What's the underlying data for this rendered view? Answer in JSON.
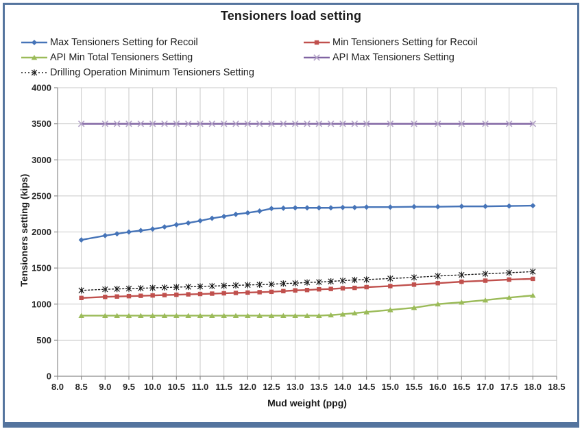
{
  "chart": {
    "title": "Tensioners load setting",
    "x_axis_label": "Mud weight (ppg)",
    "y_axis_label": "Tensioners setting (kips)"
  },
  "colors": {
    "frame_border": "#54749e",
    "gridline": "#c9c9c9",
    "axis_line": "#8c8c8c",
    "text": "#262626"
  },
  "chart_data": {
    "type": "line",
    "title": "Tensioners load setting",
    "xlabel": "Mud weight (ppg)",
    "ylabel": "Tensioners setting (kips)",
    "xlim": [
      8.0,
      18.5
    ],
    "ylim": [
      0,
      4000
    ],
    "grid": true,
    "legend_position": "top-left, two columns",
    "x_ticks": [
      "8.0",
      "8.5",
      "9.0",
      "9.5",
      "10.0",
      "10.5",
      "11.0",
      "11.5",
      "12.0",
      "12.5",
      "13.0",
      "13.5",
      "14.0",
      "14.5",
      "15.0",
      "15.5",
      "16.0",
      "16.5",
      "17.0",
      "17.5",
      "18.0",
      "18.5"
    ],
    "y_ticks": [
      "0",
      "500",
      "1000",
      "1500",
      "2000",
      "2500",
      "3000",
      "3500",
      "4000"
    ],
    "x": [
      8.5,
      9.0,
      9.25,
      9.5,
      9.75,
      10.0,
      10.25,
      10.5,
      10.75,
      11.0,
      11.25,
      11.5,
      11.75,
      12.0,
      12.25,
      12.5,
      12.75,
      13.0,
      13.25,
      13.5,
      13.75,
      14.0,
      14.25,
      14.5,
      15.0,
      15.5,
      16.0,
      16.5,
      17.0,
      17.5,
      18.0
    ],
    "series": [
      {
        "name": "Max Tensioners Setting for Recoil",
        "color": "#4674b8",
        "marker": "diamond",
        "marker_color": "#4674b8",
        "line_style": "solid",
        "values": [
          1890,
          1950,
          1975,
          2000,
          2020,
          2040,
          2070,
          2100,
          2125,
          2155,
          2190,
          2215,
          2245,
          2265,
          2290,
          2325,
          2330,
          2335,
          2335,
          2335,
          2335,
          2340,
          2340,
          2345,
          2345,
          2350,
          2350,
          2355,
          2355,
          2360,
          2365
        ]
      },
      {
        "name": "Min Tensioners Setting for Recoil",
        "color": "#c0504d",
        "marker": "square",
        "marker_color": "#c0504d",
        "line_style": "solid",
        "values": [
          1085,
          1100,
          1105,
          1110,
          1115,
          1120,
          1125,
          1130,
          1135,
          1140,
          1145,
          1150,
          1155,
          1160,
          1165,
          1170,
          1180,
          1190,
          1195,
          1205,
          1210,
          1220,
          1225,
          1235,
          1250,
          1270,
          1290,
          1310,
          1325,
          1340,
          1350
        ]
      },
      {
        "name": "API Min Total Tensioners Setting",
        "color": "#9bbb59",
        "marker": "triangle",
        "marker_color": "#9bbb59",
        "line_style": "solid",
        "values": [
          840,
          840,
          840,
          840,
          840,
          840,
          840,
          840,
          840,
          840,
          840,
          840,
          840,
          840,
          840,
          840,
          840,
          840,
          840,
          840,
          848,
          860,
          875,
          890,
          920,
          950,
          1000,
          1025,
          1055,
          1090,
          1120
        ]
      },
      {
        "name": "API Max Tensioners Setting",
        "color": "#8064a2",
        "marker": "x",
        "marker_color": "#b3a2c7",
        "line_style": "solid",
        "values": [
          3500,
          3500,
          3500,
          3500,
          3500,
          3500,
          3500,
          3500,
          3500,
          3500,
          3500,
          3500,
          3500,
          3500,
          3500,
          3500,
          3500,
          3500,
          3500,
          3500,
          3500,
          3500,
          3500,
          3500,
          3500,
          3500,
          3500,
          3500,
          3500,
          3500,
          3500
        ]
      },
      {
        "name": "Drilling Operation Minimum Tensioners Setting",
        "color": "#1a1a1a",
        "marker": "star-x",
        "marker_color": "#1a1a1a",
        "line_style": "dotted",
        "values": [
          1190,
          1205,
          1210,
          1215,
          1220,
          1225,
          1230,
          1235,
          1240,
          1245,
          1250,
          1255,
          1260,
          1265,
          1270,
          1275,
          1285,
          1290,
          1300,
          1305,
          1315,
          1325,
          1335,
          1340,
          1355,
          1370,
          1390,
          1405,
          1420,
          1435,
          1450
        ]
      }
    ]
  }
}
